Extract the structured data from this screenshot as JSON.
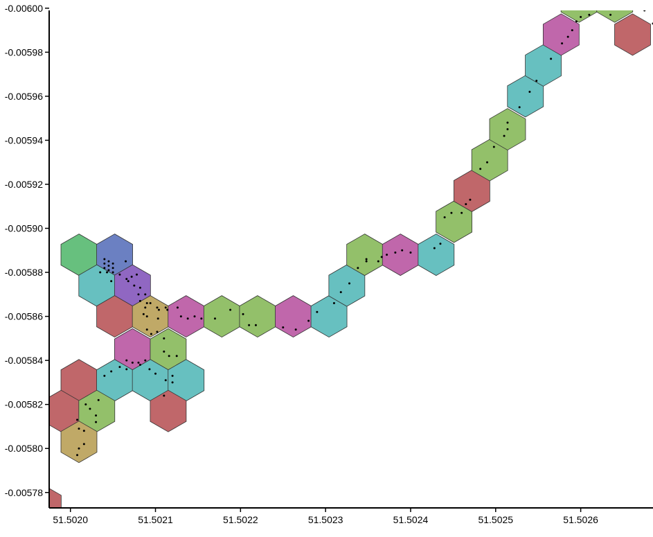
{
  "chart_data": {
    "type": "hexbin",
    "title": "",
    "xlabel": "",
    "ylabel": "",
    "xlim": [
      51.501975,
      51.502685
    ],
    "ylim": [
      -0.005773,
      -0.005999
    ],
    "x_ticks": [
      {
        "value": 51.502,
        "label": "51.5020"
      },
      {
        "value": 51.5021,
        "label": "51.5021"
      },
      {
        "value": 51.5022,
        "label": "51.5022"
      },
      {
        "value": 51.5023,
        "label": "51.5023"
      },
      {
        "value": 51.5024,
        "label": "51.5024"
      },
      {
        "value": 51.5025,
        "label": "51.5025"
      },
      {
        "value": 51.5026,
        "label": "51.5026"
      }
    ],
    "y_ticks": [
      {
        "value": -0.006,
        "label": "-0.00600"
      },
      {
        "value": -0.00598,
        "label": "-0.00598"
      },
      {
        "value": -0.00596,
        "label": "-0.00596"
      },
      {
        "value": -0.00594,
        "label": "-0.00594"
      },
      {
        "value": -0.00592,
        "label": "-0.00592"
      },
      {
        "value": -0.0059,
        "label": "-0.00590"
      },
      {
        "value": -0.00588,
        "label": "-0.00588"
      },
      {
        "value": -0.00586,
        "label": "-0.00586"
      },
      {
        "value": -0.00584,
        "label": "-0.00584"
      },
      {
        "value": -0.00582,
        "label": "-0.00582"
      },
      {
        "value": -0.0058,
        "label": "-0.00580"
      },
      {
        "value": -0.00578,
        "label": "-0.00578"
      }
    ],
    "colors": {
      "green": "#93c06a",
      "teal": "#67c0c0",
      "red": "#c0676a",
      "magenta": "#c067ab",
      "tan": "#c0a967",
      "bright_green": "#67c07e",
      "blue": "#6b80c2",
      "purple": "#9067c2"
    },
    "hexagons": [
      {
        "x": 51.50201,
        "y": -0.005888,
        "color": "bright_green"
      },
      {
        "x": 51.502052,
        "y": -0.005888,
        "color": "blue"
      },
      {
        "x": 51.502031,
        "y": -0.005874,
        "color": "teal"
      },
      {
        "x": 51.502073,
        "y": -0.005874,
        "color": "purple"
      },
      {
        "x": 51.502052,
        "y": -0.00586,
        "color": "red"
      },
      {
        "x": 51.502094,
        "y": -0.00586,
        "color": "tan"
      },
      {
        "x": 51.502136,
        "y": -0.00586,
        "color": "magenta"
      },
      {
        "x": 51.502073,
        "y": -0.005845,
        "color": "magenta"
      },
      {
        "x": 51.502115,
        "y": -0.005845,
        "color": "green"
      },
      {
        "x": 51.50201,
        "y": -0.005831,
        "color": "red"
      },
      {
        "x": 51.502052,
        "y": -0.005831,
        "color": "teal"
      },
      {
        "x": 51.502094,
        "y": -0.005831,
        "color": "teal"
      },
      {
        "x": 51.502136,
        "y": -0.005831,
        "color": "teal"
      },
      {
        "x": 51.501989,
        "y": -0.005817,
        "color": "red"
      },
      {
        "x": 51.502031,
        "y": -0.005817,
        "color": "green"
      },
      {
        "x": 51.502115,
        "y": -0.005817,
        "color": "red"
      },
      {
        "x": 51.50201,
        "y": -0.005803,
        "color": "tan"
      },
      {
        "x": 51.501968,
        "y": -0.005774,
        "color": "red"
      },
      {
        "x": 51.502178,
        "y": -0.00586,
        "color": "green"
      },
      {
        "x": 51.50222,
        "y": -0.00586,
        "color": "green"
      },
      {
        "x": 51.502262,
        "y": -0.00586,
        "color": "magenta"
      },
      {
        "x": 51.502304,
        "y": -0.00586,
        "color": "teal"
      },
      {
        "x": 51.502325,
        "y": -0.005874,
        "color": "teal"
      },
      {
        "x": 51.502346,
        "y": -0.005888,
        "color": "green"
      },
      {
        "x": 51.502388,
        "y": -0.005888,
        "color": "magenta"
      },
      {
        "x": 51.50243,
        "y": -0.005888,
        "color": "teal"
      },
      {
        "x": 51.502451,
        "y": -0.005903,
        "color": "green"
      },
      {
        "x": 51.502472,
        "y": -0.005917,
        "color": "red"
      },
      {
        "x": 51.502493,
        "y": -0.005931,
        "color": "green"
      },
      {
        "x": 51.502514,
        "y": -0.005945,
        "color": "green"
      },
      {
        "x": 51.502535,
        "y": -0.00596,
        "color": "teal"
      },
      {
        "x": 51.502556,
        "y": -0.005974,
        "color": "teal"
      },
      {
        "x": 51.502577,
        "y": -0.005988,
        "color": "magenta"
      },
      {
        "x": 51.502598,
        "y": -0.006003,
        "color": "green"
      },
      {
        "x": 51.50264,
        "y": -0.006003,
        "color": "green"
      },
      {
        "x": 51.502661,
        "y": -0.005988,
        "color": "red"
      }
    ],
    "points": [
      [
        51.50204,
        -0.005886
      ],
      [
        51.502045,
        -0.005885
      ],
      [
        51.50205,
        -0.005884
      ],
      [
        51.50204,
        -0.005884
      ],
      [
        51.502045,
        -0.005883
      ],
      [
        51.50205,
        -0.005882
      ],
      [
        51.50204,
        -0.005882
      ],
      [
        51.502045,
        -0.005881
      ],
      [
        51.502035,
        -0.00588
      ],
      [
        51.502043,
        -0.00588
      ],
      [
        51.50205,
        -0.00588
      ],
      [
        51.502058,
        -0.005879
      ],
      [
        51.502065,
        -0.005885
      ],
      [
        51.502072,
        -0.005878
      ],
      [
        51.502078,
        -0.005879
      ],
      [
        51.502048,
        -0.005876
      ],
      [
        51.502066,
        -0.005877
      ],
      [
        51.502068,
        -0.005876
      ],
      [
        51.502075,
        -0.005874
      ],
      [
        51.502082,
        -0.005873
      ],
      [
        51.50208,
        -0.00587
      ],
      [
        51.502088,
        -0.00587
      ],
      [
        51.502082,
        -0.005867
      ],
      [
        51.50209,
        -0.005866
      ],
      [
        51.502094,
        -0.005866
      ],
      [
        51.502088,
        -0.005864
      ],
      [
        51.502102,
        -0.005864
      ],
      [
        51.502112,
        -0.005864
      ],
      [
        51.502104,
        -0.005863
      ],
      [
        51.502126,
        -0.005864
      ],
      [
        51.502114,
        -0.005863
      ],
      [
        51.502086,
        -0.005861
      ],
      [
        51.50209,
        -0.00586
      ],
      [
        51.502103,
        -0.005859
      ],
      [
        51.50213,
        -0.00586
      ],
      [
        51.502138,
        -0.005859
      ],
      [
        51.502146,
        -0.00586
      ],
      [
        51.502154,
        -0.005859
      ],
      [
        51.50217,
        -0.005859
      ],
      [
        51.502188,
        -0.005863
      ],
      [
        51.502203,
        -0.005861
      ],
      [
        51.50221,
        -0.005856
      ],
      [
        51.502218,
        -0.005856
      ],
      [
        51.50225,
        -0.005855
      ],
      [
        51.502265,
        -0.005854
      ],
      [
        51.50228,
        -0.005858
      ],
      [
        51.50229,
        -0.005862
      ],
      [
        51.50231,
        -0.005866
      ],
      [
        51.502318,
        -0.005871
      ],
      [
        51.502328,
        -0.005875
      ],
      [
        51.502338,
        -0.005882
      ],
      [
        51.502348,
        -0.005885
      ],
      [
        51.502348,
        -0.005886
      ],
      [
        51.502362,
        -0.005885
      ],
      [
        51.502366,
        -0.005887
      ],
      [
        51.502372,
        -0.005888
      ],
      [
        51.502382,
        -0.005889
      ],
      [
        51.50239,
        -0.00589
      ],
      [
        51.5024,
        -0.005889
      ],
      [
        51.502435,
        -0.005893
      ],
      [
        51.502428,
        -0.005891
      ],
      [
        51.50244,
        -0.005905
      ],
      [
        51.502448,
        -0.005907
      ],
      [
        51.50246,
        -0.005907
      ],
      [
        51.502465,
        -0.005911
      ],
      [
        51.50247,
        -0.005913
      ],
      [
        51.502482,
        -0.005927
      ],
      [
        51.50249,
        -0.00593
      ],
      [
        51.502498,
        -0.005937
      ],
      [
        51.50251,
        -0.005942
      ],
      [
        51.502514,
        -0.005945
      ],
      [
        51.502514,
        -0.005948
      ],
      [
        51.502528,
        -0.005955
      ],
      [
        51.50254,
        -0.005962
      ],
      [
        51.502548,
        -0.005967
      ],
      [
        51.502565,
        -0.005977
      ],
      [
        51.502578,
        -0.005984
      ],
      [
        51.502585,
        -0.005987
      ],
      [
        51.50259,
        -0.00599
      ],
      [
        51.502595,
        -0.005994
      ],
      [
        51.5026,
        -0.005996
      ],
      [
        51.50261,
        -0.005997
      ],
      [
        51.502616,
        -0.006001
      ],
      [
        51.502635,
        -0.005997
      ],
      [
        51.502655,
        -0.006
      ],
      [
        51.502675,
        -0.005999
      ],
      [
        51.502685,
        -0.005993
      ],
      [
        51.50209,
        -0.005854
      ],
      [
        51.502095,
        -0.005852
      ],
      [
        51.502102,
        -0.005853
      ],
      [
        51.50211,
        -0.00585
      ],
      [
        51.50211,
        -0.005844
      ],
      [
        51.502116,
        -0.005842
      ],
      [
        51.502125,
        -0.005842
      ],
      [
        51.502066,
        -0.00584
      ],
      [
        51.502073,
        -0.005839
      ],
      [
        51.50208,
        -0.005839
      ],
      [
        51.502088,
        -0.00584
      ],
      [
        51.502058,
        -0.005837
      ],
      [
        51.502066,
        -0.005836
      ],
      [
        51.502082,
        -0.005838
      ],
      [
        51.502093,
        -0.005836
      ],
      [
        51.5021,
        -0.005834
      ],
      [
        51.502112,
        -0.005831
      ],
      [
        51.50212,
        -0.005833
      ],
      [
        51.50212,
        -0.00583
      ],
      [
        51.502048,
        -0.005835
      ],
      [
        51.50204,
        -0.005833
      ],
      [
        51.50211,
        -0.005824
      ],
      [
        51.502033,
        -0.005822
      ],
      [
        51.502018,
        -0.00582
      ],
      [
        51.502023,
        -0.005818
      ],
      [
        51.50203,
        -0.005815
      ],
      [
        51.502008,
        -0.005813
      ],
      [
        51.50203,
        -0.005812
      ],
      [
        51.50201,
        -0.005809
      ],
      [
        51.502016,
        -0.005808
      ],
      [
        51.502016,
        -0.005802
      ],
      [
        51.50201,
        -0.0058
      ],
      [
        51.502008,
        -0.005797
      ]
    ]
  }
}
